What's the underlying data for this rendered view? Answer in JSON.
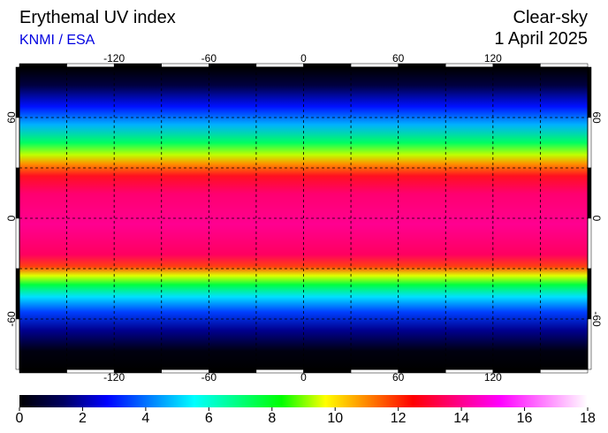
{
  "header": {
    "title": "Erythemal UV index",
    "source": "KNMI / ESA",
    "condition": "Clear-sky",
    "date": "1 April 2025"
  },
  "map": {
    "lon_lim": [
      -180,
      180
    ],
    "lat_lim": [
      -90,
      90
    ],
    "lon_ticks": [
      -120,
      -60,
      0,
      60,
      120
    ],
    "lat_ticks": [
      60,
      0,
      -60
    ],
    "grid_lon": [
      -150,
      -120,
      -90,
      -60,
      -30,
      0,
      30,
      60,
      90,
      120,
      150
    ],
    "grid_lat": [
      -60,
      -30,
      0,
      30,
      60
    ]
  },
  "colorbar": {
    "lim": [
      0,
      18
    ],
    "ticks": [
      0,
      2,
      4,
      6,
      8,
      10,
      12,
      14,
      16,
      18
    ],
    "colors": [
      "#000000",
      "#000060",
      "#0000ff",
      "#0080ff",
      "#00ffff",
      "#00ff80",
      "#00ff00",
      "#ffff00",
      "#ff8000",
      "#ff0000",
      "#ff0080",
      "#ff00ff",
      "#ff80ff",
      "#ffffff"
    ]
  }
}
